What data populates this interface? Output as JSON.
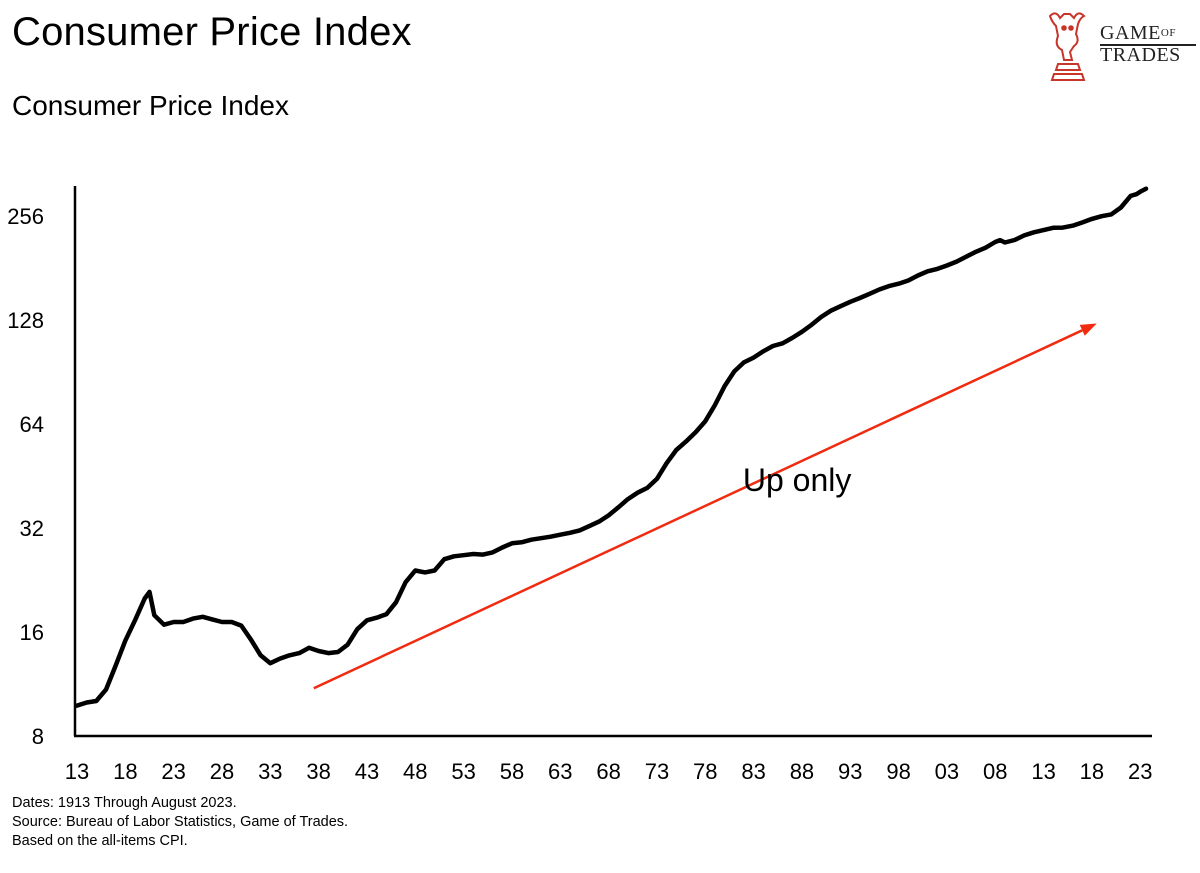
{
  "header": {
    "title": "Consumer Price Index",
    "subtitle": "Consumer Price Index"
  },
  "logo": {
    "icon": "bull-knight-chess-icon",
    "line1_main": "GAME",
    "line1_small": "OF",
    "line2": "TRADES",
    "color": "#c8352a"
  },
  "footnotes": [
    "Dates: 1913 Through August 2023.",
    "Source: Bureau of Labor Statistics, Game of Trades.",
    "Based on the all-items CPI."
  ],
  "chart_data": {
    "type": "line",
    "title": "Consumer Price Index",
    "y_scale": "log2",
    "ylim": [
      8,
      300
    ],
    "xlim": [
      1913,
      2023.7
    ],
    "y_ticks": [
      8,
      16,
      32,
      64,
      128,
      256
    ],
    "x_ticks": [
      {
        "year": 1913,
        "label": "13"
      },
      {
        "year": 1918,
        "label": "18"
      },
      {
        "year": 1923,
        "label": "23"
      },
      {
        "year": 1928,
        "label": "28"
      },
      {
        "year": 1933,
        "label": "33"
      },
      {
        "year": 1938,
        "label": "38"
      },
      {
        "year": 1943,
        "label": "43"
      },
      {
        "year": 1948,
        "label": "48"
      },
      {
        "year": 1953,
        "label": "53"
      },
      {
        "year": 1958,
        "label": "58"
      },
      {
        "year": 1963,
        "label": "63"
      },
      {
        "year": 1968,
        "label": "68"
      },
      {
        "year": 1973,
        "label": "73"
      },
      {
        "year": 1978,
        "label": "78"
      },
      {
        "year": 1983,
        "label": "83"
      },
      {
        "year": 1988,
        "label": "88"
      },
      {
        "year": 1993,
        "label": "93"
      },
      {
        "year": 1998,
        "label": "98"
      },
      {
        "year": 2003,
        "label": "03"
      },
      {
        "year": 2008,
        "label": "08"
      },
      {
        "year": 2013,
        "label": "13"
      },
      {
        "year": 2018,
        "label": "18"
      },
      {
        "year": 2023,
        "label": "23"
      }
    ],
    "grid": false,
    "line_color": "#000000",
    "series": [
      {
        "x": [
          1913,
          1914,
          1915,
          1916,
          1917,
          1918,
          1919,
          1920,
          1920.5,
          1921,
          1922,
          1923,
          1924,
          1925,
          1926,
          1927,
          1928,
          1929,
          1930,
          1931,
          1932,
          1933,
          1934,
          1935,
          1936,
          1937,
          1938,
          1939,
          1940,
          1941,
          1942,
          1943,
          1944,
          1945,
          1946,
          1947,
          1948,
          1949,
          1950,
          1951,
          1952,
          1953,
          1954,
          1955,
          1956,
          1957,
          1958,
          1959,
          1960,
          1961,
          1962,
          1963,
          1964,
          1965,
          1966,
          1967,
          1968,
          1969,
          1970,
          1971,
          1972,
          1973,
          1974,
          1975,
          1976,
          1977,
          1978,
          1979,
          1980,
          1981,
          1982,
          1983,
          1984,
          1985,
          1986,
          1987,
          1988,
          1989,
          1990,
          1991,
          1992,
          1993,
          1994,
          1995,
          1996,
          1997,
          1998,
          1999,
          2000,
          2001,
          2002,
          2003,
          2004,
          2005,
          2006,
          2007,
          2008,
          2008.5,
          2009,
          2010,
          2011,
          2012,
          2013,
          2014,
          2015,
          2016,
          2017,
          2018,
          2019,
          2020,
          2021,
          2022,
          2022.6,
          2023,
          2023.6
        ],
        "y": [
          9.8,
          10.0,
          10.1,
          10.9,
          12.8,
          15.1,
          17.3,
          20.0,
          20.9,
          17.9,
          16.8,
          17.1,
          17.1,
          17.5,
          17.7,
          17.4,
          17.1,
          17.1,
          16.7,
          15.2,
          13.7,
          13.0,
          13.4,
          13.7,
          13.9,
          14.4,
          14.1,
          13.9,
          14.0,
          14.7,
          16.3,
          17.3,
          17.6,
          18.0,
          19.5,
          22.3,
          24.1,
          23.8,
          24.1,
          26.0,
          26.5,
          26.7,
          26.9,
          26.8,
          27.2,
          28.1,
          28.9,
          29.1,
          29.6,
          29.9,
          30.2,
          30.6,
          31.0,
          31.5,
          32.4,
          33.4,
          34.8,
          36.7,
          38.8,
          40.5,
          41.8,
          44.4,
          49.3,
          53.8,
          56.9,
          60.6,
          65.2,
          72.6,
          82.4,
          90.9,
          96.5,
          99.6,
          103.9,
          107.6,
          109.6,
          113.6,
          118.3,
          124.0,
          130.7,
          136.2,
          140.3,
          144.5,
          148.2,
          152.4,
          156.9,
          160.5,
          163.0,
          166.6,
          172.2,
          177.1,
          179.9,
          184.0,
          188.9,
          195.3,
          201.6,
          207.3,
          215.3,
          218.0,
          214.5,
          218.1,
          224.9,
          229.6,
          233.0,
          236.7,
          237.0,
          240.0,
          245.1,
          251.1,
          255.7,
          258.8,
          271.0,
          292.7,
          296.0,
          301.0,
          307.0
        ]
      }
    ],
    "annotations": [
      {
        "type": "arrow",
        "from": {
          "x": 1937.5,
          "y": 11.0
        },
        "to": {
          "x": 2018.5,
          "y": 125
        },
        "color": "#f02b10"
      },
      {
        "type": "text",
        "text": "Up only",
        "x": 1987.5,
        "y": 41
      }
    ]
  }
}
